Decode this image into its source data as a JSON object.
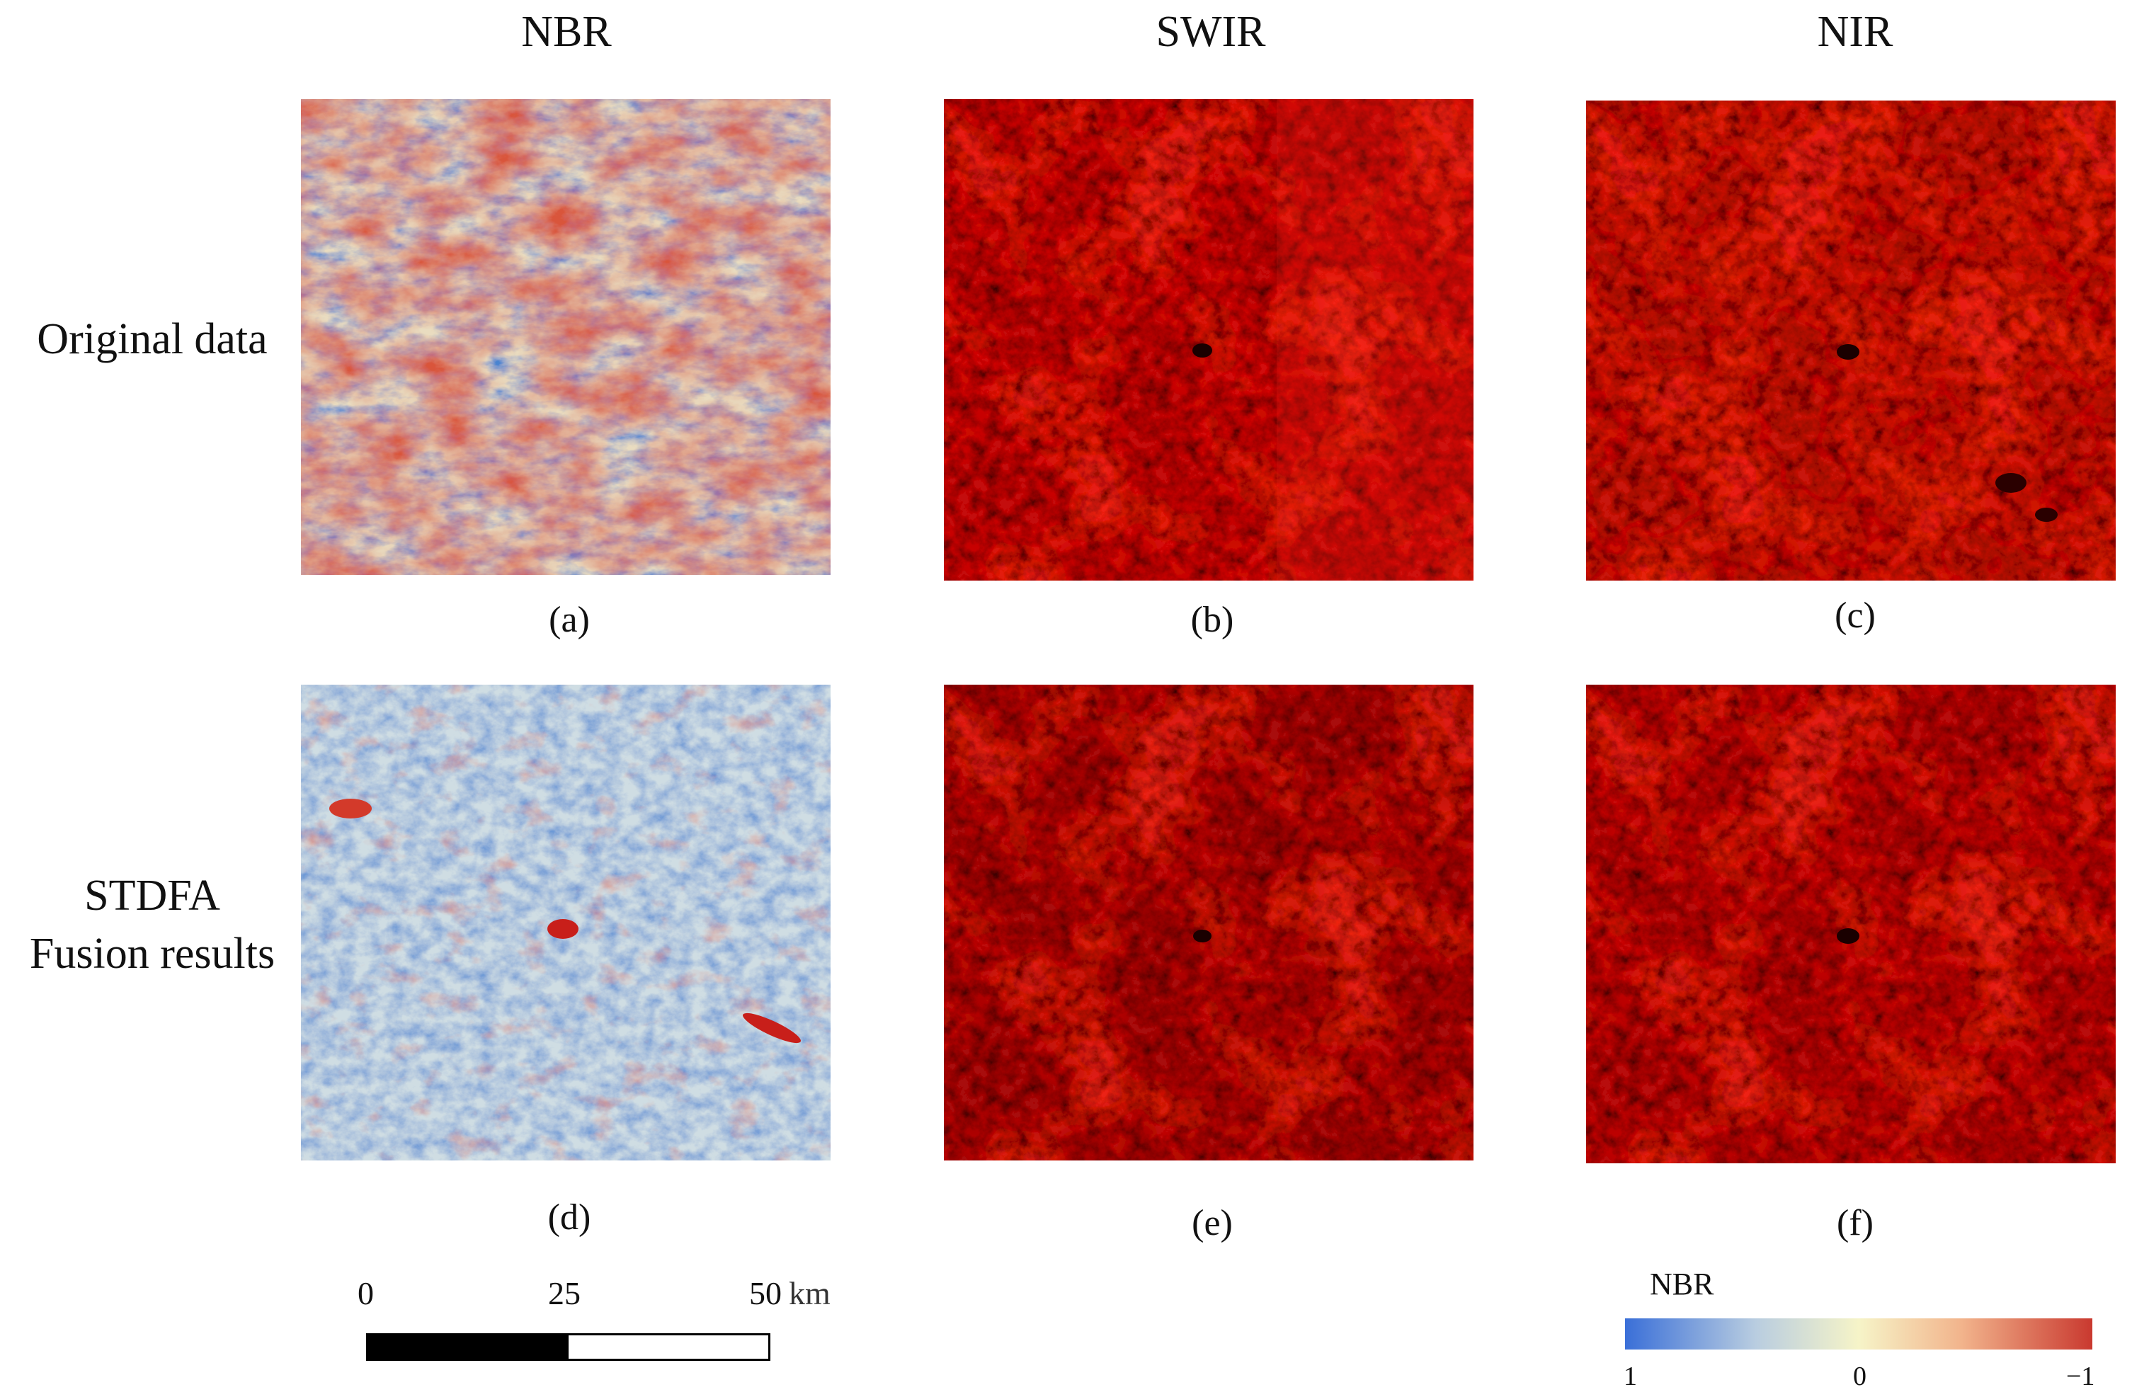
{
  "columns": [
    "NBR",
    "SWIR",
    "NIR"
  ],
  "rows": {
    "row1": "Original data",
    "row2_line1": "STDFA",
    "row2_line2": "Fusion results"
  },
  "captions": [
    "(a)",
    "(b)",
    "(c)",
    "(d)",
    "(e)",
    "(f)"
  ],
  "scale_bar": {
    "ticks": [
      "0",
      "25",
      "50"
    ],
    "unit": "km"
  },
  "legend": {
    "title": "NBR",
    "min_label": "1",
    "mid_label": "0",
    "max_label": "−1",
    "colors": [
      "#3a6fd8",
      "#f6f4c8",
      "#c9392f"
    ]
  },
  "panels": [
    {
      "id": "a",
      "content": "nbr-map"
    },
    {
      "id": "b",
      "content": "swir-map"
    },
    {
      "id": "c",
      "content": "nir-map"
    },
    {
      "id": "d",
      "content": "nbr-map"
    },
    {
      "id": "e",
      "content": "swir-map"
    },
    {
      "id": "f",
      "content": "nir-map"
    }
  ]
}
